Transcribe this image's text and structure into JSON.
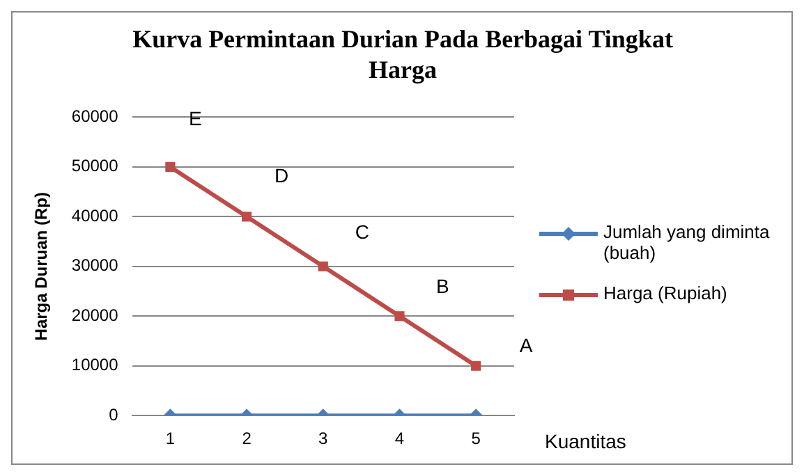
{
  "chart_data": {
    "type": "line",
    "title": "Kurva Permintaan Durian Pada Berbagai Tingkat Harga",
    "xlabel": "Kuantitas",
    "ylabel": "Harga Duruan (Rp)",
    "categories": [
      "1",
      "2",
      "3",
      "4",
      "5"
    ],
    "series": [
      {
        "name": "Jumlah yang diminta (buah)",
        "color": "#4a7ebb",
        "marker": "diamond",
        "values": [
          0,
          0,
          0,
          0,
          0
        ]
      },
      {
        "name": "Harga (Rupiah)",
        "color": "#be4b48",
        "marker": "square",
        "values": [
          50000,
          40000,
          30000,
          20000,
          10000
        ]
      }
    ],
    "ylim": [
      0,
      60000
    ],
    "yticks": [
      0,
      10000,
      20000,
      30000,
      40000,
      50000,
      60000
    ],
    "grid": "y",
    "legend": "right",
    "line_style": "solid",
    "annotations": [
      "E",
      "D",
      "C",
      "B",
      "A"
    ]
  }
}
